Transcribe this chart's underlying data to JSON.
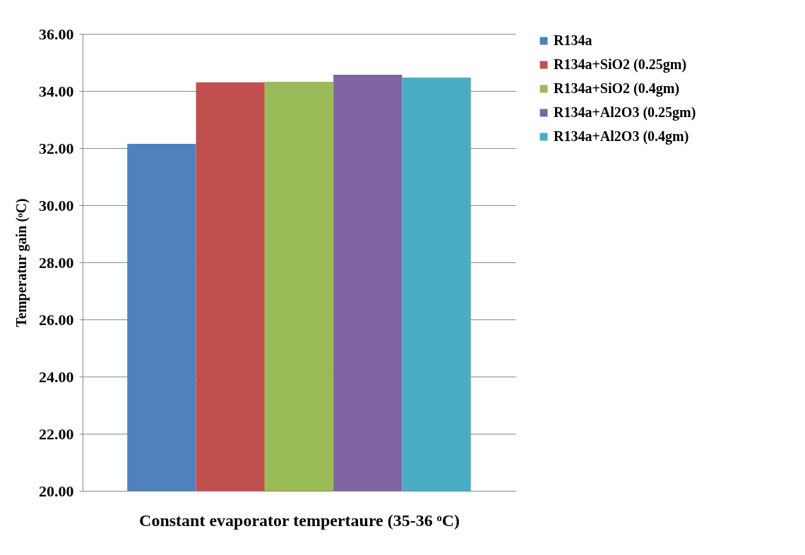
{
  "chart_data": {
    "type": "bar",
    "xlabel": "Constant evaporator  tempertaure (35-36 ᵒC)",
    "ylabel": "Temperatur gain (ᵒC)",
    "categories": [
      null
    ],
    "series": [
      {
        "name": "R134a",
        "color": "#4f81bd",
        "values": [
          32.15
        ]
      },
      {
        "name": "R134a+SiO2 (0.25gm)",
        "color": "#c0504d",
        "values": [
          34.3
        ]
      },
      {
        "name": "R134a+SiO2 (0.4gm)",
        "color": "#9bbb59",
        "values": [
          34.32
        ]
      },
      {
        "name": "R134a+Al2O3 (0.25gm)",
        "color": "#8064a2",
        "values": [
          34.57
        ]
      },
      {
        "name": "R134a+Al2O3 (0.4gm)",
        "color": "#4bacc6",
        "values": [
          34.47
        ]
      }
    ],
    "ylim": [
      20,
      36
    ],
    "yticks": [
      {
        "value": 20,
        "label": "20.00"
      },
      {
        "value": 22,
        "label": "22.00"
      },
      {
        "value": 24,
        "label": "24.00"
      },
      {
        "value": 26,
        "label": "26.00"
      },
      {
        "value": 28,
        "label": "28.00"
      },
      {
        "value": 30,
        "label": "30.00"
      },
      {
        "value": 32,
        "label": "32.00"
      },
      {
        "value": 34,
        "label": "34.00"
      },
      {
        "value": 36,
        "label": "36.00"
      }
    ],
    "grid": "y",
    "legend": "right"
  }
}
